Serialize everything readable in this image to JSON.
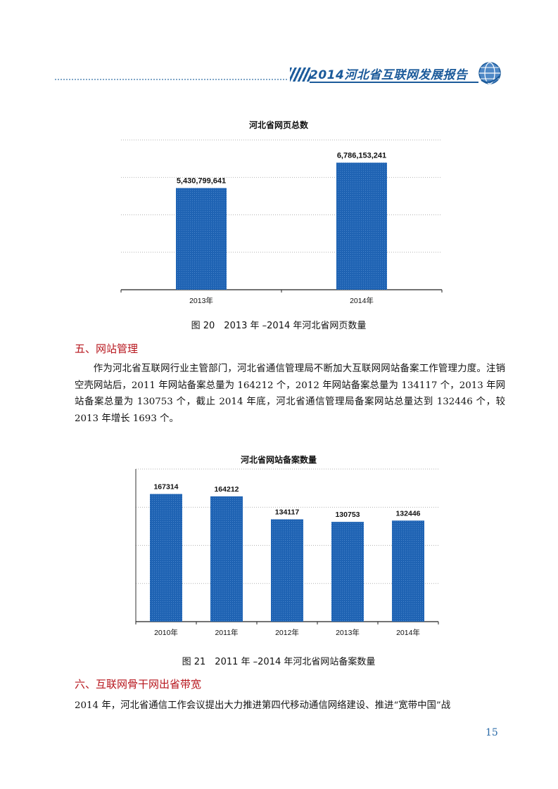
{
  "header": {
    "title": "2014河北省互联网发展报告"
  },
  "figure20": {
    "caption": "图 20　2013 年 –2014 年河北省网页数量",
    "chart_data": {
      "type": "bar",
      "title": "河北省网页总数",
      "categories": [
        "2013年",
        "2014年"
      ],
      "values": [
        5430799641,
        6786153241
      ],
      "value_labels": [
        "5,430,799,641",
        "6,786,153,241"
      ],
      "ylim": [
        0,
        8000000000
      ],
      "grid": true,
      "color": "#1f63b3"
    }
  },
  "section5": {
    "heading": "五、网站管理",
    "paragraph": "作为河北省互联网行业主管部门，河北省通信管理局不断加大互联网网站备案工作管理力度。注销空壳网站后，2011 年网站备案总量为 164212 个，2012 年网站备案总量为 134117 个，2013 年网站备案总量为 130753 个，截止 2014 年底，河北省通信管理局备案网站总量达到 132446 个，较 2013 年增长 1693 个。"
  },
  "figure21": {
    "caption": "图 21　2011 年 –2014 年河北省网站备案数量",
    "chart_data": {
      "type": "bar",
      "title": "河北省网站备案数量",
      "categories": [
        "2010年",
        "2011年",
        "2012年",
        "2013年",
        "2014年"
      ],
      "values": [
        167314,
        164212,
        134117,
        130753,
        132446
      ],
      "value_labels": [
        "167314",
        "164212",
        "134117",
        "130753",
        "132446"
      ],
      "ylim": [
        0,
        200000
      ],
      "grid": true,
      "color": "#1f63b3"
    }
  },
  "section6": {
    "heading": "六、互联网骨干网出省带宽",
    "paragraph": "2014 年，河北省通信工作会议提出大力推进第四代移动通信网络建设、推进“宽带中国”战"
  },
  "page_number": "15"
}
